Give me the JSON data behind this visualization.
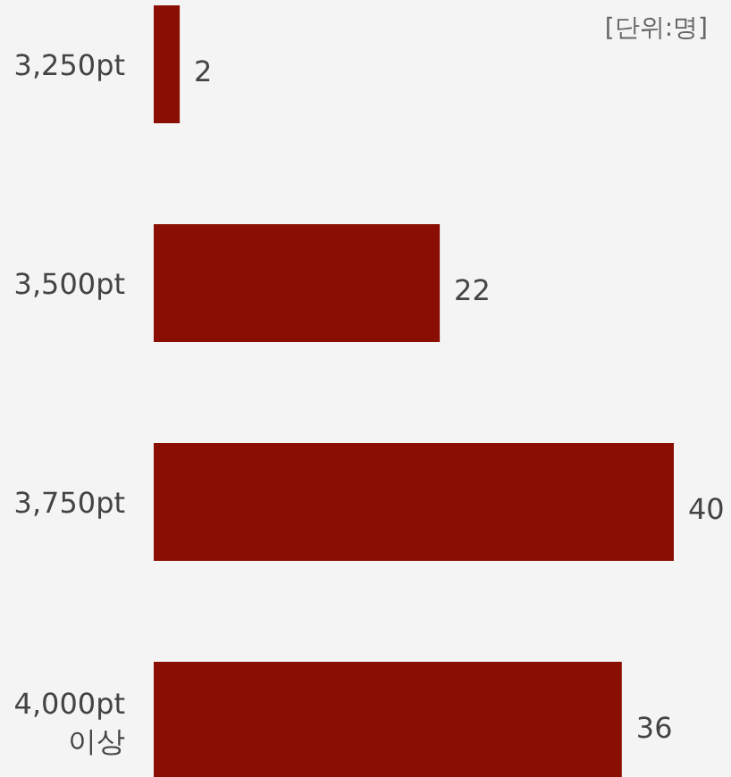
{
  "chart_data": {
    "type": "bar",
    "orientation": "horizontal",
    "categories": [
      "3,250pt",
      "3,500pt",
      "3,750pt",
      "4,000pt\n이상"
    ],
    "values": [
      2,
      22,
      40,
      36
    ],
    "color": "#8b0e04",
    "data_labels": true,
    "annotations": [
      "[단위:명]"
    ]
  }
}
